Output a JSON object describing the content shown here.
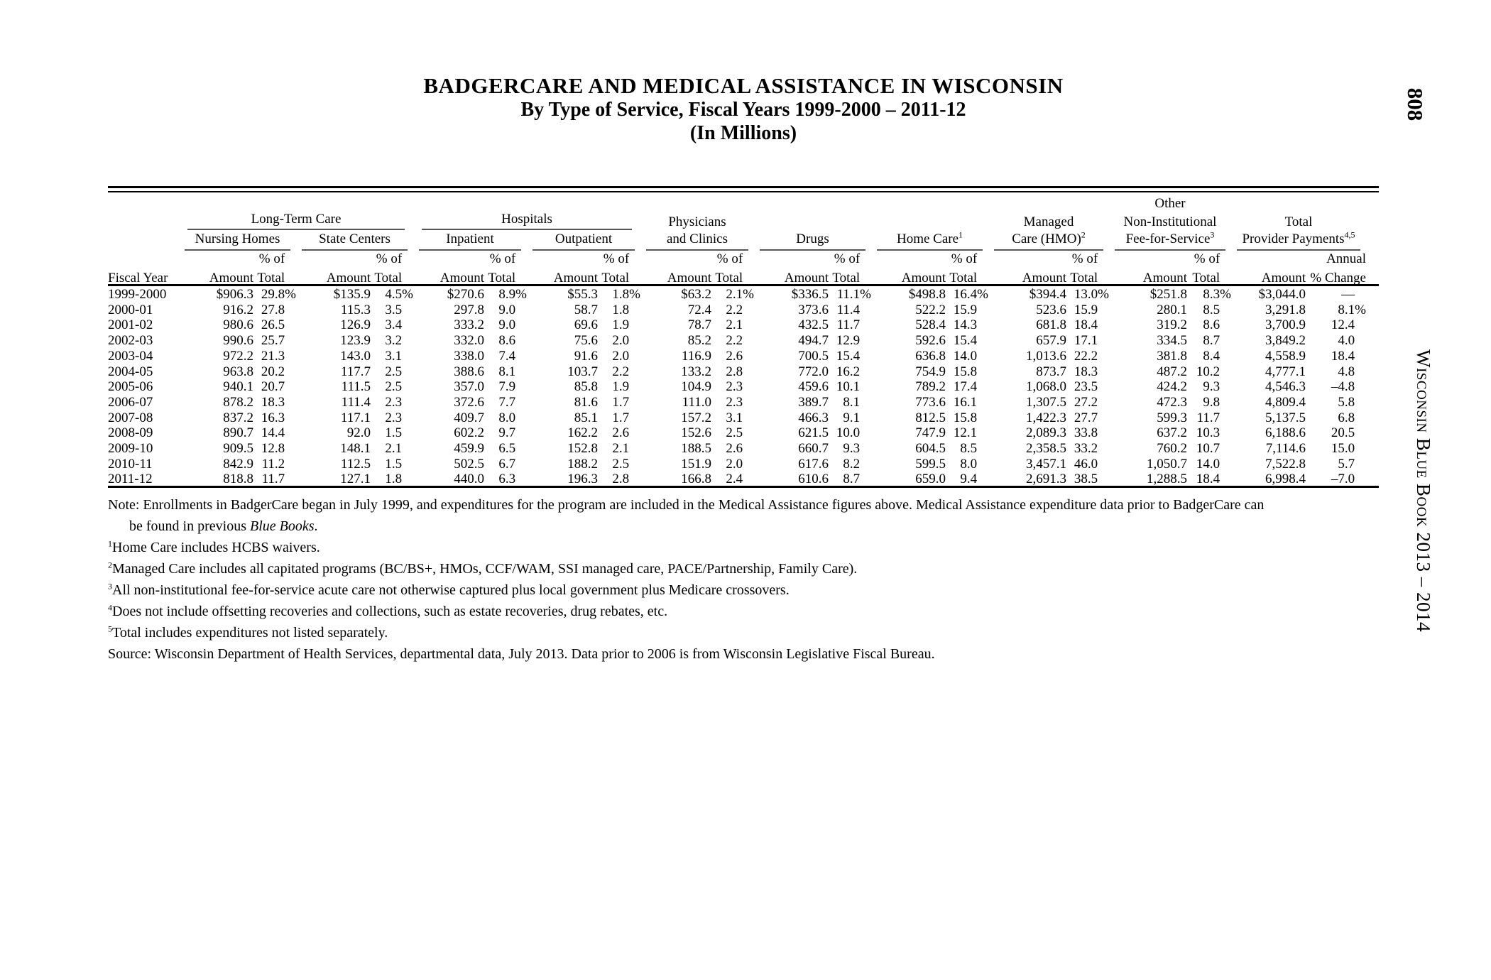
{
  "page": {
    "page_number": "808",
    "side_title": "Wisconsin Blue Book 2013 – 2014"
  },
  "title": {
    "line1": "BADGERCARE AND MEDICAL ASSISTANCE IN WISCONSIN",
    "line2": "By Type of Service, Fiscal Years 1999-2000 – 2011-12",
    "line3": "(In Millions)"
  },
  "table": {
    "head": {
      "other": "Other",
      "groups": {
        "ltc": "Long-Term Care",
        "hospitals": "Hospitals",
        "physicians": "Physicians",
        "managed": "Managed",
        "noninst": "Non-Institutional",
        "total": "Total"
      },
      "sub": {
        "nursing": "Nursing Homes",
        "state": "State Centers",
        "inpatient": "Inpatient",
        "outpatient": "Outpatient",
        "clinics": "and Clinics",
        "drugs": "Drugs",
        "home": "Home Care",
        "home_sup": "1",
        "hmo": "Care (HMO)",
        "hmo_sup": "2",
        "ffs": "Fee-for-Service",
        "ffs_sup": "3",
        "payments": "Provider Payments",
        "payments_sup": "4,5"
      },
      "pct_of": "% of",
      "total_lbl": "Total",
      "annual": "Annual",
      "fiscal": "Fiscal Year",
      "amount": "Amount",
      "pct_change": "% Change"
    },
    "rows": [
      [
        "1999-2000",
        "$906.3",
        "29.8%",
        "$135.9",
        "4.5%",
        "$270.6",
        "8.9%",
        "$55.3",
        "1.8%",
        "$63.2",
        "2.1%",
        "$336.5",
        "11.1%",
        "$498.8",
        "16.4%",
        "$394.4",
        "13.0%",
        "$251.8",
        "8.3%",
        "$3,044.0",
        "—"
      ],
      [
        "2000-01",
        "916.2",
        "27.8",
        "115.3",
        "3.5",
        "297.8",
        "9.0",
        "58.7",
        "1.8",
        "72.4",
        "2.2",
        "373.6",
        "11.4",
        "522.2",
        "15.9",
        "523.6",
        "15.9",
        "280.1",
        "8.5",
        "3,291.8",
        "8.1%"
      ],
      [
        "2001-02",
        "980.6",
        "26.5",
        "126.9",
        "3.4",
        "333.2",
        "9.0",
        "69.6",
        "1.9",
        "78.7",
        "2.1",
        "432.5",
        "11.7",
        "528.4",
        "14.3",
        "681.8",
        "18.4",
        "319.2",
        "8.6",
        "3,700.9",
        "12.4"
      ],
      [
        "2002-03",
        "990.6",
        "25.7",
        "123.9",
        "3.2",
        "332.0",
        "8.6",
        "75.6",
        "2.0",
        "85.2",
        "2.2",
        "494.7",
        "12.9",
        "592.6",
        "15.4",
        "657.9",
        "17.1",
        "334.5",
        "8.7",
        "3,849.2",
        "4.0"
      ],
      [
        "2003-04",
        "972.2",
        "21.3",
        "143.0",
        "3.1",
        "338.0",
        "7.4",
        "91.6",
        "2.0",
        "116.9",
        "2.6",
        "700.5",
        "15.4",
        "636.8",
        "14.0",
        "1,013.6",
        "22.2",
        "381.8",
        "8.4",
        "4,558.9",
        "18.4"
      ],
      [
        "2004-05",
        "963.8",
        "20.2",
        "117.7",
        "2.5",
        "388.6",
        "8.1",
        "103.7",
        "2.2",
        "133.2",
        "2.8",
        "772.0",
        "16.2",
        "754.9",
        "15.8",
        "873.7",
        "18.3",
        "487.2",
        "10.2",
        "4,777.1",
        "4.8"
      ],
      [
        "2005-06",
        "940.1",
        "20.7",
        "111.5",
        "2.5",
        "357.0",
        "7.9",
        "85.8",
        "1.9",
        "104.9",
        "2.3",
        "459.6",
        "10.1",
        "789.2",
        "17.4",
        "1,068.0",
        "23.5",
        "424.2",
        "9.3",
        "4,546.3",
        "–4.8"
      ],
      [
        "2006-07",
        "878.2",
        "18.3",
        "111.4",
        "2.3",
        "372.6",
        "7.7",
        "81.6",
        "1.7",
        "111.0",
        "2.3",
        "389.7",
        "8.1",
        "773.6",
        "16.1",
        "1,307.5",
        "27.2",
        "472.3",
        "9.8",
        "4,809.4",
        "5.8"
      ],
      [
        "2007-08",
        "837.2",
        "16.3",
        "117.1",
        "2.3",
        "409.7",
        "8.0",
        "85.1",
        "1.7",
        "157.2",
        "3.1",
        "466.3",
        "9.1",
        "812.5",
        "15.8",
        "1,422.3",
        "27.7",
        "599.3",
        "11.7",
        "5,137.5",
        "6.8"
      ],
      [
        "2008-09",
        "890.7",
        "14.4",
        "92.0",
        "1.5",
        "602.2",
        "9.7",
        "162.2",
        "2.6",
        "152.6",
        "2.5",
        "621.5",
        "10.0",
        "747.9",
        "12.1",
        "2,089.3",
        "33.8",
        "637.2",
        "10.3",
        "6,188.6",
        "20.5"
      ],
      [
        "2009-10",
        "909.5",
        "12.8",
        "148.1",
        "2.1",
        "459.9",
        "6.5",
        "152.8",
        "2.1",
        "188.5",
        "2.6",
        "660.7",
        "9.3",
        "604.5",
        "8.5",
        "2,358.5",
        "33.2",
        "760.2",
        "10.7",
        "7,114.6",
        "15.0"
      ],
      [
        "2010-11",
        "842.9",
        "11.2",
        "112.5",
        "1.5",
        "502.5",
        "6.7",
        "188.2",
        "2.5",
        "151.9",
        "2.0",
        "617.6",
        "8.2",
        "599.5",
        "8.0",
        "3,457.1",
        "46.0",
        "1,050.7",
        "14.0",
        "7,522.8",
        "5.7"
      ],
      [
        "2011-12",
        "818.8",
        "11.7",
        "127.1",
        "1.8",
        "440.0",
        "6.3",
        "196.3",
        "2.8",
        "166.8",
        "2.4",
        "610.6",
        "8.7",
        "659.0",
        "9.4",
        "2,691.3",
        "38.5",
        "1,288.5",
        "18.4",
        "6,998.4",
        "–7.0"
      ]
    ]
  },
  "note_main": {
    "line1": "Note: Enrollments in BadgerCare began in July 1999, and expenditures for the program are included in the Medical Assistance figures above.  Medical Assistance expenditure data prior to BadgerCare can",
    "line2_pre": "be found in previous ",
    "line2_italic": "Blue Books",
    "line2_post": "."
  },
  "footnotes": [
    {
      "sup": "1",
      "text": "Home Care includes HCBS waivers."
    },
    {
      "sup": "2",
      "text": "Managed Care includes all capitated programs (BC/BS+, HMOs, CCF/WAM, SSI managed care, PACE/Partnership, Family Care)."
    },
    {
      "sup": "3",
      "text": "All non-institutional fee-for-service acute care not otherwise captured plus local government plus Medicare crossovers."
    },
    {
      "sup": "4",
      "text": "Does not include offsetting recoveries and collections, such as estate recoveries, drug rebates, etc."
    },
    {
      "sup": "5",
      "text": "Total includes expenditures not listed separately."
    }
  ],
  "source": "Source: Wisconsin Department of Health Services, departmental data, July 2013.  Data prior to 2006 is from Wisconsin Legislative Fiscal Bureau."
}
